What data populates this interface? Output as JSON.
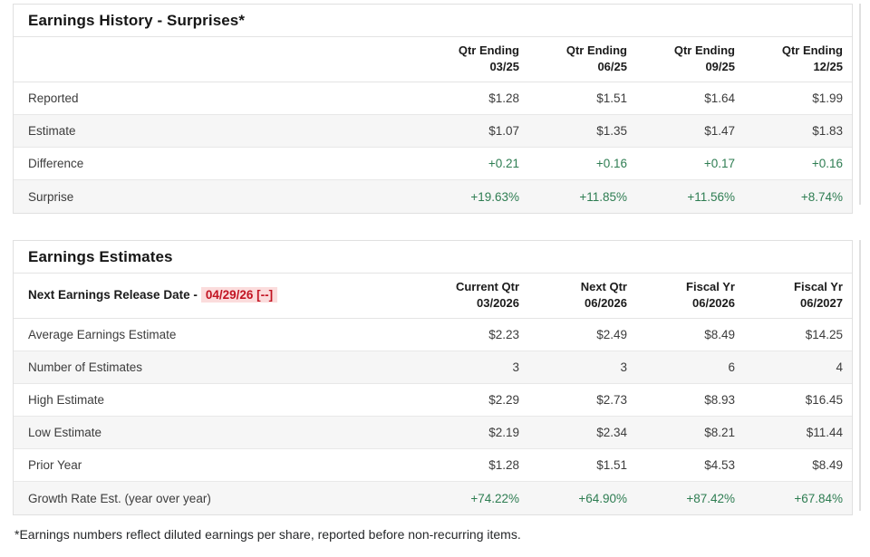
{
  "colors": {
    "positive_green": "#2e7d52",
    "alert_red": "#c21422",
    "alert_red_bg": "#fbdcdc",
    "row_alt_bg": "#f6f6f6",
    "border_gray": "#e0e0e0"
  },
  "surprises_table": {
    "title": "Earnings History - Surprises*",
    "columns": [
      {
        "line1": "Qtr Ending",
        "line2": "03/25"
      },
      {
        "line1": "Qtr Ending",
        "line2": "06/25"
      },
      {
        "line1": "Qtr Ending",
        "line2": "09/25"
      },
      {
        "line1": "Qtr Ending",
        "line2": "12/25"
      }
    ],
    "rows": [
      {
        "label": "Reported",
        "values": [
          "$1.28",
          "$1.51",
          "$1.64",
          "$1.99"
        ]
      },
      {
        "label": "Estimate",
        "values": [
          "$1.07",
          "$1.35",
          "$1.47",
          "$1.83"
        ]
      },
      {
        "label": "Difference",
        "values": [
          "+0.21",
          "+0.16",
          "+0.17",
          "+0.16"
        ]
      },
      {
        "label": "Surprise",
        "values": [
          "+19.63%",
          "+11.85%",
          "+11.56%",
          "+8.74%"
        ]
      }
    ]
  },
  "estimates_table": {
    "title": "Earnings Estimates",
    "release_date_label": "Next Earnings Release Date -",
    "release_date_value": "04/29/26 [--]",
    "columns": [
      {
        "line1": "Current Qtr",
        "line2": "03/2026"
      },
      {
        "line1": "Next Qtr",
        "line2": "06/2026"
      },
      {
        "line1": "Fiscal Yr",
        "line2": "06/2026"
      },
      {
        "line1": "Fiscal Yr",
        "line2": "06/2027"
      }
    ],
    "rows": [
      {
        "label": "Average Earnings Estimate",
        "values": [
          "$2.23",
          "$2.49",
          "$8.49",
          "$14.25"
        ]
      },
      {
        "label": "Number of Estimates",
        "values": [
          "3",
          "3",
          "6",
          "4"
        ]
      },
      {
        "label": "High Estimate",
        "values": [
          "$2.29",
          "$2.73",
          "$8.93",
          "$16.45"
        ]
      },
      {
        "label": "Low Estimate",
        "values": [
          "$2.19",
          "$2.34",
          "$8.21",
          "$11.44"
        ]
      },
      {
        "label": "Prior Year",
        "values": [
          "$1.28",
          "$1.51",
          "$4.53",
          "$8.49"
        ]
      },
      {
        "label": "Growth Rate Est. (year over year)",
        "values": [
          "+74.22%",
          "+64.90%",
          "+87.42%",
          "+67.84%"
        ]
      }
    ]
  },
  "footnote": "*Earnings numbers reflect diluted earnings per share, reported before non-recurring items."
}
